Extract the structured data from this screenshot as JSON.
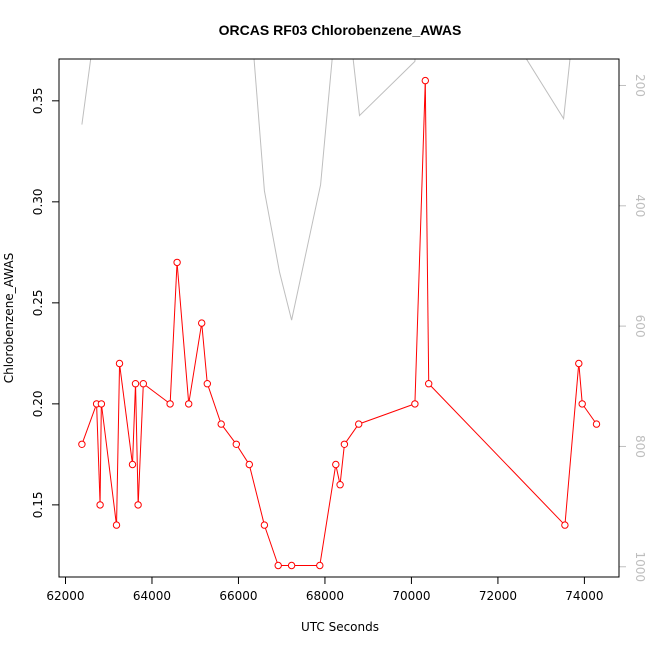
{
  "chart_data": {
    "type": "line",
    "title": "ORCAS RF03 Chlorobenzene_AWAS",
    "xlabel": "UTC Seconds",
    "ylabel": "Chlorobenzene_AWAS",
    "xlim": [
      61850,
      74800
    ],
    "ylim": [
      0.1143,
      0.3707
    ],
    "x_ticks": [
      "62000",
      "64000",
      "66000",
      "68000",
      "70000",
      "72000",
      "74000"
    ],
    "y_ticks": [
      "0.15",
      "0.20",
      "0.25",
      "0.30",
      "0.35"
    ],
    "series": [
      {
        "color": "#ff0000",
        "marker": "open-circle",
        "x": [
          62380,
          62720,
          62800,
          62830,
          63180,
          63250,
          63550,
          63620,
          63680,
          63800,
          64420,
          64580,
          64850,
          65150,
          65280,
          65600,
          65950,
          66250,
          66600,
          66920,
          67230,
          67880,
          68250,
          68350,
          68450,
          68780,
          70080,
          70320,
          70400,
          73550,
          73870,
          73950,
          74280
        ],
        "y": [
          0.18,
          0.2,
          0.15,
          0.2,
          0.14,
          0.22,
          0.17,
          0.21,
          0.15,
          0.21,
          0.2,
          0.27,
          0.2,
          0.24,
          0.21,
          0.19,
          0.18,
          0.17,
          0.14,
          0.12,
          0.12,
          0.12,
          0.17,
          0.16,
          0.18,
          0.19,
          0.2,
          0.36,
          0.21,
          0.14,
          0.22,
          0.2,
          0.19
        ]
      }
    ],
    "secondary_axis": {
      "side": "right",
      "color": "#bebebe",
      "reversed": true,
      "lim": [
        156,
        1017
      ],
      "ticks": [
        "200",
        "400",
        "600",
        "800",
        "1000"
      ],
      "series": {
        "color": "#bebebe",
        "x": [
          62380,
          62650,
          63050,
          63200,
          63350,
          63600,
          64300,
          64750,
          64850,
          65050,
          65500,
          65650,
          65750,
          66300,
          66600,
          66950,
          67230,
          67900,
          68200,
          68550,
          68800,
          70080,
          70120,
          72000,
          73520,
          73750,
          74000
        ],
        "y": [
          265,
          120,
          120,
          150,
          110,
          80,
          95,
          80,
          150,
          85,
          90,
          145,
          100,
          100,
          375,
          510,
          590,
          365,
          130,
          90,
          250,
          160,
          100,
          80,
          255,
          100,
          80
        ]
      }
    },
    "grid": false,
    "legend": "none"
  }
}
